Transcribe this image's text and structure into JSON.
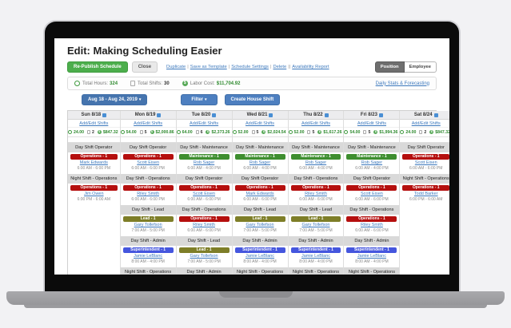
{
  "header": {
    "title": "Edit: Making Scheduling Easier"
  },
  "toolbar": {
    "republish": "Re-Publish Schedule",
    "close": "Close",
    "links": [
      "Duplicate",
      "Save as Template",
      "Schedule Settings",
      "Delete",
      "",
      "Availability Report"
    ],
    "view_toggle": {
      "position": "Position",
      "employee": "Employee",
      "active": "Position"
    }
  },
  "stats": {
    "total_hours_label": "Total Hours:",
    "total_hours": "324",
    "total_shifts_label": "Total Shifts:",
    "total_shifts": "30",
    "labor_cost_label": "Labor Cost:",
    "labor_cost": "$11,704.92",
    "daily_stats_link": "Daily Stats & Forecasting"
  },
  "controls": {
    "date_range": "Aug 18 - Aug 24, 2019",
    "filter": "Filter",
    "create_house_shift": "Create House Shift",
    "caret": "▾"
  },
  "badge_colors": {
    "red": "#b50f0e",
    "green": "#3e8e2f",
    "olive": "#7e7e28",
    "blue": "#4556de"
  },
  "week": {
    "add_edit_label": "Add/Edit Shifts",
    "days": [
      {
        "label": "Sun 8/18",
        "hours": "24.00",
        "count": "2",
        "cost": "$847.32",
        "slots": [
          {
            "t": "sec",
            "label": "Day Shift Operator"
          },
          {
            "t": "shift",
            "badge": "Operations - 1",
            "c": "red",
            "name": "Mark Edwards",
            "time": "6:00 AM - 6:00 PM"
          },
          {
            "t": "sec",
            "label": "Night Shift - Operations"
          },
          {
            "t": "shift",
            "badge": "Operations - 1",
            "c": "red",
            "name": "Jim Owen",
            "time": "6:00 PM - 6:00 AM"
          },
          {
            "t": "empty"
          },
          {
            "t": "empty"
          },
          {
            "t": "empty"
          },
          {
            "t": "empty"
          },
          {
            "t": "empty"
          }
        ]
      },
      {
        "label": "Mon 8/19",
        "hours": "54.00",
        "count": "5",
        "cost": "$2,000.86",
        "slots": [
          {
            "t": "sec",
            "label": "Day Shift Operator"
          },
          {
            "t": "shift",
            "badge": "Operations - 1",
            "c": "red",
            "name": "Scott Eisen",
            "time": "6:00 AM - 6:00 PM"
          },
          {
            "t": "sec",
            "label": "Day Shift - Operations"
          },
          {
            "t": "shift",
            "badge": "Operations - 1",
            "c": "red",
            "name": "Riley Smith",
            "time": "6:00 AM - 6:00 PM"
          },
          {
            "t": "sec",
            "label": "Day Shift - Lead"
          },
          {
            "t": "shift",
            "badge": "Lead - 1",
            "c": "olive",
            "name": "Gary Tollefson",
            "time": "7:00 AM - 5:00 PM"
          },
          {
            "t": "sec",
            "label": "Day Shift - Admin"
          },
          {
            "t": "shift",
            "badge": "Superintendent - 1",
            "c": "blue",
            "name": "Jamie LeBlanc",
            "time": "8:00 AM - 4:00 PM"
          },
          {
            "t": "sec",
            "label": "Night Shift - Operations"
          }
        ]
      },
      {
        "label": "Tue 8/20",
        "hours": "64.00",
        "count": "6",
        "cost": "$2,373.26",
        "slots": [
          {
            "t": "sec",
            "label": "Day Shift - Maintenance"
          },
          {
            "t": "shift",
            "badge": "Maintenance - 1",
            "c": "green",
            "name": "Rob Sager",
            "time": "6:00 AM - 4:00 PM"
          },
          {
            "t": "sec",
            "label": "Day Shift Operator"
          },
          {
            "t": "shift",
            "badge": "Operations - 1",
            "c": "red",
            "name": "Scott Eisen",
            "time": "6:00 AM - 6:00 PM"
          },
          {
            "t": "sec",
            "label": "Day Shift - Operations"
          },
          {
            "t": "shift",
            "badge": "Operations - 1",
            "c": "red",
            "name": "Riley Smith",
            "time": "6:00 AM - 6:00 PM"
          },
          {
            "t": "sec",
            "label": "Day Shift - Lead"
          },
          {
            "t": "shift",
            "badge": "Lead - 1",
            "c": "olive",
            "name": "Gary Tollefson",
            "time": "7:00 AM - 5:00 PM"
          },
          {
            "t": "sec",
            "label": "Day Shift - Admin"
          }
        ]
      },
      {
        "label": "Wed 8/21",
        "hours": "52.00",
        "count": "5",
        "cost": "$2,024.54",
        "slots": [
          {
            "t": "sec",
            "label": "Day Shift - Maintenance"
          },
          {
            "t": "shift",
            "badge": "Maintenance - 1",
            "c": "green",
            "name": "Rob Sager",
            "time": "6:00 AM - 4:00 PM"
          },
          {
            "t": "sec",
            "label": "Day Shift Operator"
          },
          {
            "t": "shift",
            "badge": "Operations - 1",
            "c": "red",
            "name": "Mark Edwards",
            "time": "6:00 AM - 6:00 PM"
          },
          {
            "t": "sec",
            "label": "Day Shift - Lead"
          },
          {
            "t": "shift",
            "badge": "Lead - 1",
            "c": "olive",
            "name": "Gary Tollefson",
            "time": "7:00 AM - 5:00 PM"
          },
          {
            "t": "sec",
            "label": "Day Shift - Admin"
          },
          {
            "t": "shift",
            "badge": "Superintendent - 1",
            "c": "blue",
            "name": "Jamie LeBlanc",
            "time": "8:00 AM - 4:00 PM"
          },
          {
            "t": "sec",
            "label": "Night Shift - Operations"
          }
        ]
      },
      {
        "label": "Thu 8/22",
        "hours": "52.00",
        "count": "5",
        "cost": "$1,617.26",
        "slots": [
          {
            "t": "sec",
            "label": "Day Shift - Maintenance"
          },
          {
            "t": "shift",
            "badge": "Maintenance - 1",
            "c": "green",
            "name": "Rob Sager",
            "time": "6:00 AM - 4:00 PM"
          },
          {
            "t": "sec",
            "label": "Day Shift - Operations"
          },
          {
            "t": "shift",
            "badge": "Operations - 1",
            "c": "red",
            "name": "Riley Smith",
            "time": "6:00 AM - 6:00 PM"
          },
          {
            "t": "sec",
            "label": "Day Shift - Lead"
          },
          {
            "t": "shift",
            "badge": "Lead - 1",
            "c": "olive",
            "name": "Gary Tollefson",
            "time": "7:00 AM - 5:00 PM"
          },
          {
            "t": "sec",
            "label": "Day Shift - Admin"
          },
          {
            "t": "shift",
            "badge": "Superintendent - 1",
            "c": "blue",
            "name": "Jamie LeBlanc",
            "time": "8:00 AM - 4:00 PM"
          },
          {
            "t": "sec",
            "label": "Night Shift - Operations"
          }
        ]
      },
      {
        "label": "Fri 8/23",
        "hours": "54.00",
        "count": "5",
        "cost": "$1,994.36",
        "slots": [
          {
            "t": "sec",
            "label": "Day Shift - Maintenance"
          },
          {
            "t": "shift",
            "badge": "Maintenance - 1",
            "c": "green",
            "name": "Rob Sager",
            "time": "6:00 AM - 4:00 PM"
          },
          {
            "t": "sec",
            "label": "Day Shift Operator"
          },
          {
            "t": "shift",
            "badge": "Operations - 1",
            "c": "red",
            "name": "Scott Eisen",
            "time": "6:00 AM - 6:00 PM"
          },
          {
            "t": "sec",
            "label": "Day Shift - Operations"
          },
          {
            "t": "shift",
            "badge": "Operations - 1",
            "c": "red",
            "name": "Riley Smith",
            "time": "6:00 AM - 6:00 PM"
          },
          {
            "t": "sec",
            "label": "Day Shift - Admin"
          },
          {
            "t": "shift",
            "badge": "Superintendent - 1",
            "c": "blue",
            "name": "Jamie LeBlanc",
            "time": "8:00 AM - 4:00 PM"
          },
          {
            "t": "sec",
            "label": "Night Shift - Operations"
          }
        ]
      },
      {
        "label": "Sat 8/24",
        "hours": "24.00",
        "count": "2",
        "cost": "$847.32",
        "slots": [
          {
            "t": "sec",
            "label": "Day Shift Operator"
          },
          {
            "t": "shift",
            "badge": "Operations - 1",
            "c": "red",
            "name": "Scott Eisen",
            "time": "6:00 AM - 6:00 PM"
          },
          {
            "t": "sec",
            "label": "Night Shift - Operations"
          },
          {
            "t": "shift",
            "badge": "Operations - 1",
            "c": "red",
            "name": "Todd Barker",
            "time": "6:00 PM - 6:00 AM"
          },
          {
            "t": "empty"
          },
          {
            "t": "empty"
          },
          {
            "t": "empty"
          },
          {
            "t": "empty"
          },
          {
            "t": "empty"
          }
        ]
      }
    ]
  }
}
